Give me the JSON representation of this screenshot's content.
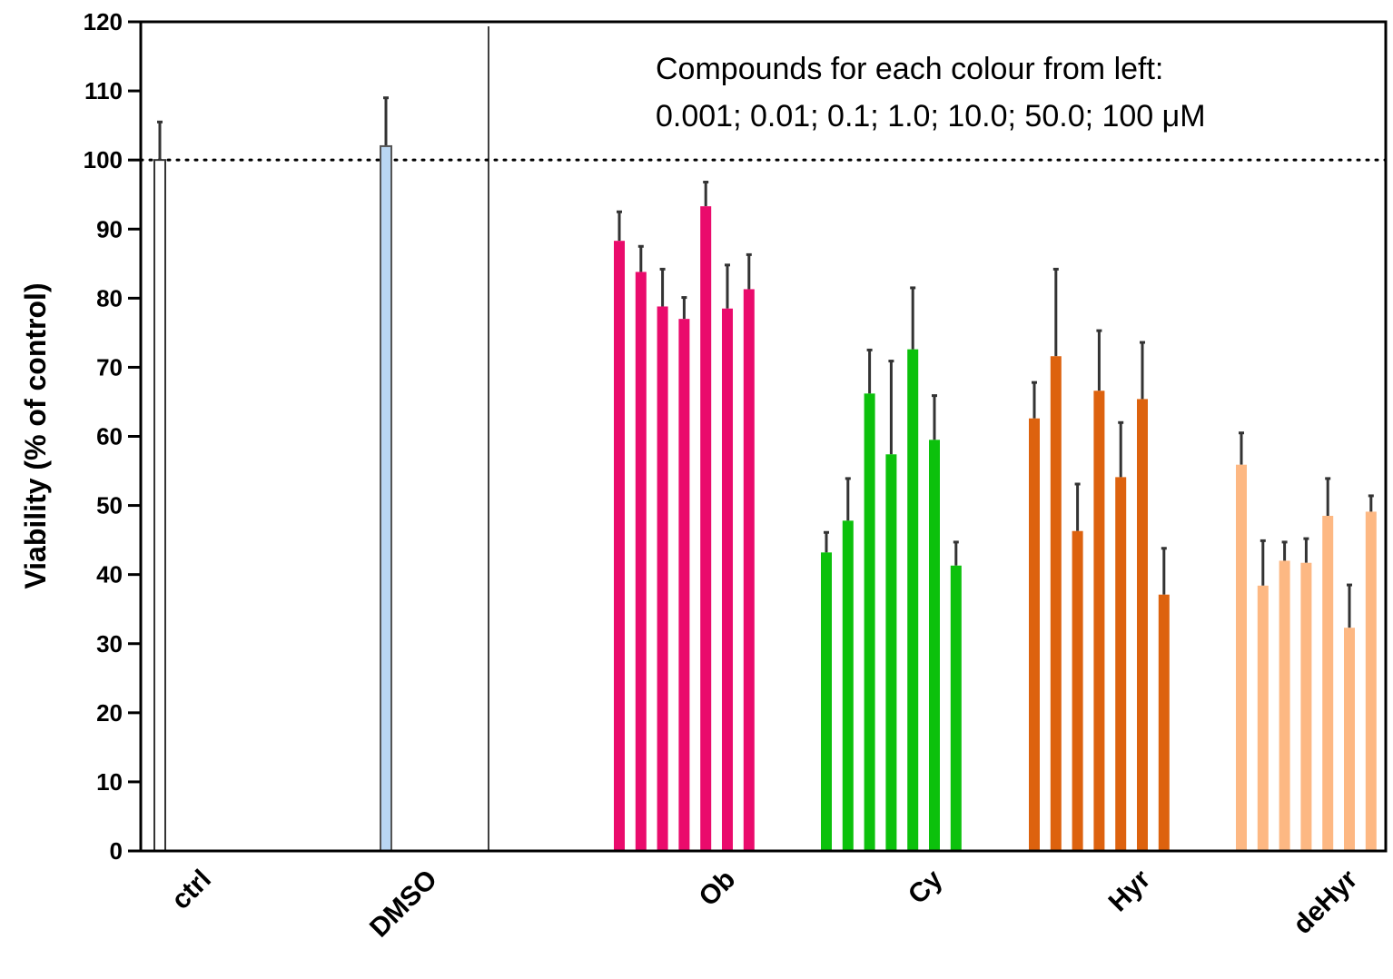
{
  "chart_data": {
    "type": "bar",
    "ylabel": "Viability (% of control)",
    "xlabel": "",
    "ylim": [
      0,
      120
    ],
    "yticks": [
      "0",
      "10",
      "20",
      "30",
      "40",
      "50",
      "60",
      "70",
      "80",
      "90",
      "100",
      "110",
      "120"
    ],
    "reference_line": {
      "y": 100,
      "style": "dotted"
    },
    "grid": false,
    "annotation": {
      "line1": "Compounds for each colour from left:",
      "line2": "0.001; 0.01; 0.1; 1.0; 10.0; 50.0; 100 μM"
    },
    "groups": [
      {
        "name": "ctrl",
        "color": "#ffffff",
        "outline": "#333333",
        "values": [
          100
        ],
        "errors": [
          5.5
        ]
      },
      {
        "name": "DMSO",
        "color": "#b9d6f2",
        "outline": "#555555",
        "values": [
          102
        ],
        "errors": [
          7
        ]
      },
      {
        "name": "Ob",
        "color": "#ea0b6c",
        "values": [
          88.3,
          83.8,
          78.8,
          77,
          93.3,
          78.5,
          81.3
        ],
        "errors": [
          4.2,
          3.7,
          5.4,
          3.1,
          3.5,
          6.3,
          5
        ]
      },
      {
        "name": "Cy",
        "color": "#0cc10c",
        "values": [
          43.2,
          47.8,
          66.2,
          57.4,
          72.6,
          59.5,
          41.3
        ],
        "errors": [
          2.9,
          6.1,
          6.3,
          13.5,
          8.9,
          6.4,
          3.4
        ]
      },
      {
        "name": "Hyr",
        "color": "#dd620e",
        "values": [
          62.6,
          71.6,
          46.3,
          66.6,
          54.1,
          65.4,
          37.1
        ],
        "errors": [
          5.2,
          12.6,
          6.8,
          8.7,
          7.9,
          8.2,
          6.7
        ]
      },
      {
        "name": "deHyr",
        "color": "#fdb883",
        "values": [
          55.9,
          38.4,
          42,
          41.7,
          48.5,
          32.3,
          49.1
        ],
        "errors": [
          4.6,
          6.5,
          2.7,
          3.5,
          5.4,
          6.2,
          2.3
        ]
      }
    ]
  }
}
